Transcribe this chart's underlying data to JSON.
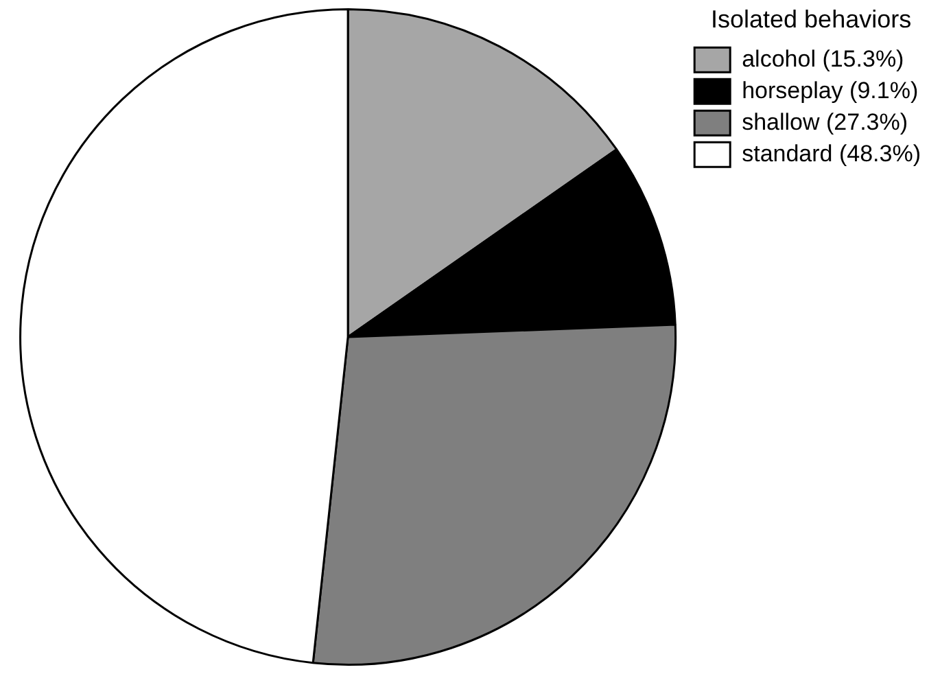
{
  "chart_data": {
    "type": "pie",
    "legend_title": "Isolated behaviors",
    "legend": "top right",
    "categories": [
      "alcohol (15.3%)",
      "horseplay (9.1%)",
      "shallow (27.3%)",
      "standard (48.3%)"
    ],
    "values": [
      15.3,
      9.1,
      27.3,
      48.3
    ],
    "colors": [
      "#a6a6a6",
      "#000000",
      "#7f7f7f",
      "#ffffff"
    ]
  }
}
